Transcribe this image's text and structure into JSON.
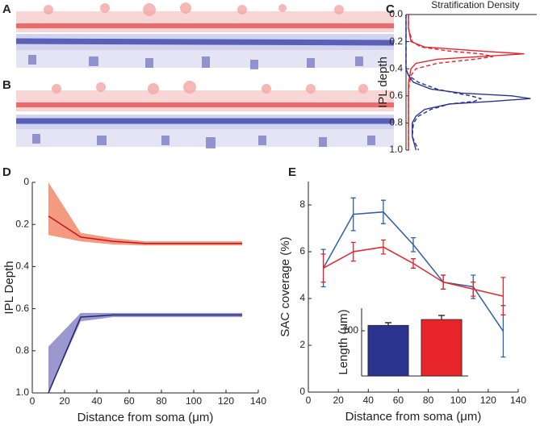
{
  "panels": [
    "A",
    "B",
    "C",
    "D",
    "E"
  ],
  "chart_data": [
    {
      "type": "density",
      "title": "Stratification Density",
      "ylabel": "IPL depth",
      "x_vertical": true,
      "x_inverted": true,
      "xlim": [
        0,
        1
      ],
      "xticks": [
        {
          "value": 0,
          "label": "0.0"
        },
        0.2,
        0.4,
        0.6,
        0.8,
        {
          "value": 1,
          "label": "1.0"
        }
      ],
      "ylim": [
        0,
        1.05
      ],
      "x": [
        0,
        0.1,
        0.2,
        0.24,
        0.27,
        0.29,
        0.31,
        0.33,
        0.36,
        0.4,
        0.45,
        0.5,
        0.55,
        0.58,
        0.6,
        0.62,
        0.64,
        0.66,
        0.7,
        0.75,
        0.8,
        0.9,
        1.0
      ],
      "series": [
        {
          "color": "#e8242b",
          "dashed": false,
          "values": [
            0.02,
            0.02,
            0.04,
            0.15,
            0.6,
            0.95,
            0.6,
            0.25,
            0.08,
            0.04,
            0.03,
            0.02,
            0.02,
            0.02,
            0.02,
            0.02,
            0.02,
            0.02,
            0.02,
            0.02,
            0.02,
            0.02,
            0.02
          ]
        },
        {
          "color": "#e8242b",
          "dashed": true,
          "values": [
            0.02,
            0.02,
            0.05,
            0.12,
            0.35,
            0.6,
            0.7,
            0.55,
            0.25,
            0.08,
            0.04,
            0.03,
            0.02,
            0.02,
            0.02,
            0.02,
            0.02,
            0.02,
            0.02,
            0.02,
            0.02,
            0.02,
            0.02
          ]
        },
        {
          "color": "#2b3590",
          "dashed": false,
          "values": [
            0,
            0,
            0,
            0,
            0,
            0,
            0,
            0,
            0,
            0,
            0.02,
            0.06,
            0.2,
            0.45,
            0.85,
            1.0,
            0.7,
            0.35,
            0.15,
            0.08,
            0.05,
            0.05,
            0.08
          ]
        },
        {
          "color": "#2b3590",
          "dashed": true,
          "values": [
            0,
            0,
            0,
            0,
            0,
            0,
            0,
            0,
            0,
            0,
            0.02,
            0.1,
            0.25,
            0.4,
            0.52,
            0.6,
            0.55,
            0.35,
            0.2,
            0.1,
            0.06,
            0.05,
            0.1
          ]
        }
      ]
    },
    {
      "type": "band",
      "xlabel": "Distance from soma (μm)",
      "ylabel": "IPL Depth",
      "y_inverted": true,
      "xlim": [
        0,
        140
      ],
      "xticks": [
        0,
        20,
        40,
        60,
        80,
        100,
        120,
        140
      ],
      "ylim": [
        0,
        1
      ],
      "yticks": [
        0,
        0.2,
        0.4,
        0.6,
        0.8,
        {
          "value": 1,
          "label": "1.0"
        }
      ],
      "x": [
        10,
        30,
        50,
        70,
        90,
        110,
        130
      ],
      "series": [
        {
          "color": "#c8141e",
          "band_color": "#f08a6a",
          "values": [
            0.16,
            0.26,
            0.28,
            0.29,
            0.29,
            0.29,
            0.29
          ],
          "low": [
            0,
            0.24,
            0.265,
            0.28,
            0.28,
            0.28,
            0.28
          ],
          "high": [
            0.25,
            0.28,
            0.295,
            0.3,
            0.3,
            0.3,
            0.3
          ]
        },
        {
          "color": "#1e2470",
          "band_color": "#8a86c8",
          "values": [
            1.0,
            0.64,
            0.63,
            0.63,
            0.63,
            0.63,
            0.63
          ],
          "low": [
            0.78,
            0.62,
            0.62,
            0.62,
            0.62,
            0.62,
            0.62
          ],
          "high": [
            1.0,
            0.66,
            0.64,
            0.64,
            0.64,
            0.64,
            0.64
          ]
        }
      ]
    },
    {
      "type": "errorbar",
      "xlabel": "Distance from soma (μm)",
      "ylabel": "SAC coverage (%)",
      "xlim": [
        0,
        140
      ],
      "xticks": [
        0,
        20,
        40,
        60,
        80,
        100,
        120,
        140
      ],
      "ylim": [
        0,
        9
      ],
      "yticks": [
        0,
        2,
        4,
        6,
        8
      ],
      "x": [
        10,
        30,
        50,
        70,
        90,
        110,
        130
      ],
      "series": [
        {
          "color": "#2f5fa8",
          "values": [
            5.3,
            7.6,
            7.7,
            6.3,
            4.7,
            4.5,
            2.6
          ],
          "errors": [
            0.8,
            0.7,
            0.5,
            0.3,
            0.3,
            0.5,
            1.1
          ]
        },
        {
          "color": "#e8242b",
          "values": [
            5.3,
            6.0,
            6.2,
            5.5,
            4.7,
            4.4,
            4.1
          ],
          "errors": [
            0.6,
            0.4,
            0.3,
            0.2,
            0.3,
            0.3,
            0.8
          ]
        }
      ]
    },
    {
      "type": "bar",
      "ylabel": "Length (μm)",
      "categories": [
        null,
        null
      ],
      "values": [
        112,
        125
      ],
      "errors": [
        6,
        9
      ],
      "colors": [
        "#2b3590",
        "#e8242b"
      ],
      "ylim": [
        0,
        150
      ],
      "yticks": [
        100
      ]
    }
  ]
}
